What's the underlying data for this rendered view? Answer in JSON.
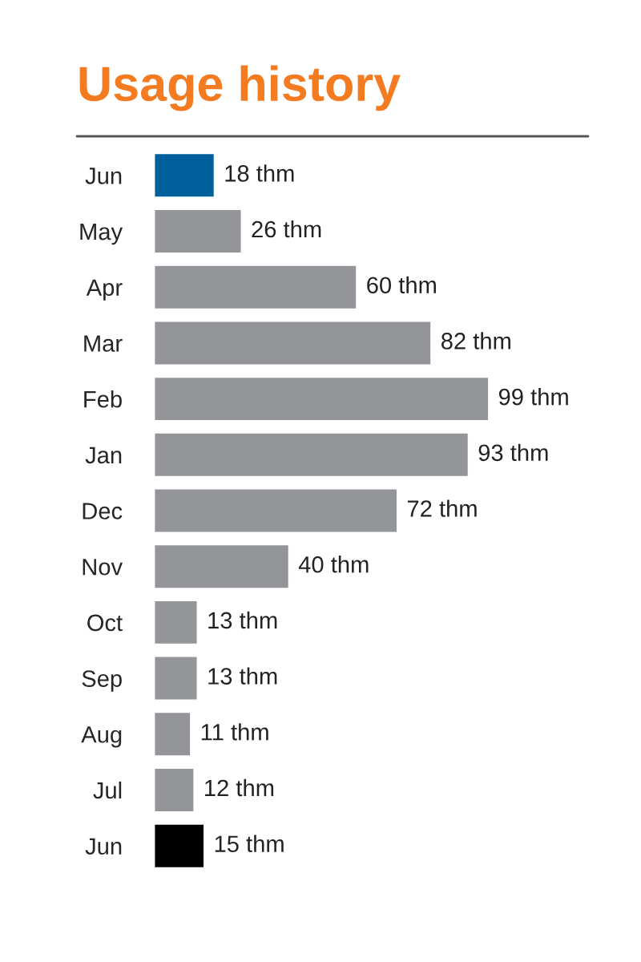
{
  "chart_data": {
    "type": "bar",
    "orientation": "horizontal",
    "title": "Usage history",
    "categories": [
      "Jun",
      "May",
      "Apr",
      "Mar",
      "Feb",
      "Jan",
      "Dec",
      "Nov",
      "Oct",
      "Sep",
      "Aug",
      "Jul",
      "Jun"
    ],
    "values": [
      18,
      26,
      60,
      82,
      99,
      93,
      72,
      40,
      13,
      13,
      11,
      12,
      15
    ],
    "colors": [
      "#00609c",
      "#939598",
      "#939598",
      "#939598",
      "#939598",
      "#939598",
      "#939598",
      "#939598",
      "#939598",
      "#939598",
      "#939598",
      "#939598",
      "#000000"
    ],
    "value_labels": [
      "18 thm",
      "26 thm",
      "60 thm",
      "82 thm",
      "99 thm",
      "93 thm",
      "72 thm",
      "40 thm",
      "13 thm",
      "13 thm",
      "11 thm",
      "12 thm",
      "15 thm"
    ],
    "tick_labels": "y",
    "grid": false,
    "legend": false
  }
}
